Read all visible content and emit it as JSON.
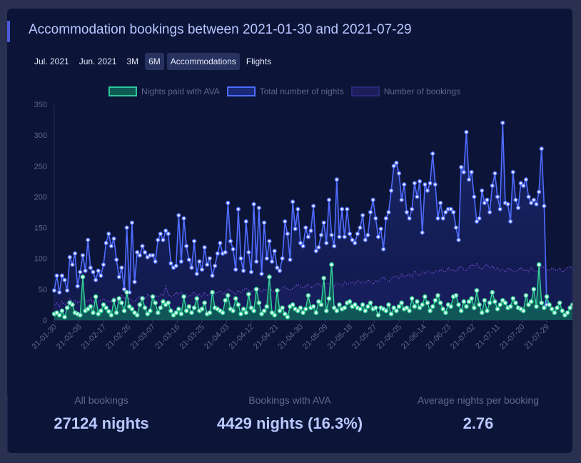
{
  "title": "Accommodation bookings between 2021-01-30 and 2021-07-29",
  "toolbar": [
    {
      "label": "Jul. 2021",
      "active": false
    },
    {
      "label": "Jun. 2021",
      "active": false
    },
    {
      "label": "3M",
      "active": false
    },
    {
      "label": "6M",
      "active": true
    },
    {
      "label": "Accommodations",
      "active": true
    },
    {
      "label": "Flights",
      "active": false
    }
  ],
  "stats": [
    {
      "label": "All bookings",
      "value": "27124 nights"
    },
    {
      "label": "Bookings with AVA",
      "value": "4429 nights (16.3%)"
    },
    {
      "label": "Average nights per booking",
      "value": "2.76"
    }
  ],
  "colors": {
    "ava": "#2fe0a0",
    "total": "#4f6cff",
    "bookings": "#7b4fd8"
  },
  "chart_data": {
    "type": "line",
    "title": "",
    "xlabel": "",
    "ylabel": "",
    "ylim": [
      0,
      350
    ],
    "yticks": [
      0,
      50,
      100,
      150,
      200,
      250,
      300,
      350
    ],
    "xtick_labels": [
      "21-01-30",
      "21-02-08",
      "21-02-17",
      "21-02-26",
      "21-03-07",
      "21-03-16",
      "21-03-25",
      "21-04-03",
      "21-04-12",
      "21-04-21",
      "21-04-30",
      "21-05-09",
      "21-05-18",
      "21-05-27",
      "21-06-05",
      "21-06-14",
      "21-06-23",
      "21-07-02",
      "21-07-11",
      "21-07-20",
      "21-07-29"
    ],
    "legend_position": "top-center",
    "series": [
      {
        "name": "Nights paid with AVA",
        "color": "#2fe0a0",
        "values": [
          10,
          12,
          8,
          15,
          5,
          20,
          28,
          25,
          12,
          10,
          8,
          70,
          15,
          18,
          22,
          12,
          38,
          10,
          15,
          25,
          20,
          14,
          8,
          32,
          12,
          35,
          28,
          15,
          45,
          22,
          18,
          12,
          8,
          25,
          35,
          20,
          10,
          15,
          38,
          28,
          12,
          20,
          30,
          25,
          28,
          15,
          8,
          12,
          18,
          10,
          38,
          15,
          22,
          12,
          20,
          35,
          15,
          18,
          28,
          10,
          12,
          45,
          20,
          18,
          15,
          12,
          32,
          40,
          18,
          15,
          35,
          25,
          10,
          18,
          12,
          42,
          20,
          15,
          50,
          28,
          10,
          15,
          22,
          70,
          12,
          8,
          48,
          15,
          20,
          10,
          5,
          22,
          25,
          18,
          15,
          20,
          12,
          18,
          40,
          20,
          22,
          12,
          30,
          25,
          68,
          15,
          35,
          90,
          20,
          15,
          25,
          18,
          20,
          28,
          30,
          22,
          25,
          20,
          18,
          25,
          15,
          22,
          28,
          18,
          20,
          8,
          20,
          18,
          15,
          25,
          10,
          20,
          15,
          22,
          28,
          18,
          20,
          15,
          35,
          22,
          30,
          20,
          25,
          38,
          28,
          15,
          22,
          32,
          40,
          28,
          18,
          12,
          25,
          22,
          38,
          40,
          25,
          15,
          30,
          22,
          30,
          35,
          20,
          48,
          25,
          12,
          32,
          15,
          28,
          45,
          30,
          18,
          25,
          32,
          28,
          20,
          22,
          35,
          28,
          20,
          18,
          15,
          40,
          25,
          30,
          50,
          22,
          90,
          28,
          20,
          38,
          25,
          18,
          12,
          20,
          28,
          15,
          8,
          12,
          20,
          25,
          10,
          30,
          15,
          18,
          25,
          20,
          62,
          35,
          22,
          8
        ],
        "show_markers": true,
        "fill": true
      },
      {
        "name": "Total number of nights",
        "color": "#4f6cff",
        "values": [
          48,
          72,
          45,
          72,
          65,
          48,
          102,
          90,
          108,
          55,
          78,
          105,
          80,
          130,
          85,
          78,
          65,
          80,
          72,
          90,
          125,
          140,
          120,
          132,
          98,
          70,
          85,
          50,
          150,
          45,
          158,
          62,
          110,
          105,
          120,
          110,
          102,
          105,
          105,
          95,
          130,
          140,
          130,
          145,
          140,
          92,
          85,
          88,
          170,
          95,
          165,
          120,
          98,
          85,
          128,
          75,
          95,
          82,
          118,
          90,
          100,
          72,
          88,
          108,
          125,
          108,
          110,
          190,
          128,
          115,
          82,
          180,
          100,
          80,
          160,
          110,
          78,
          188,
          95,
          182,
          75,
          158,
          100,
          128,
          95,
          112,
          85,
          80,
          100,
          160,
          140,
          98,
          192,
          148,
          180,
          125,
          120,
          150,
          135,
          145,
          185,
          112,
          118,
          138,
          158,
          125,
          195,
          138,
          120,
          228,
          135,
          180,
          135,
          180,
          140,
          130,
          125,
          140,
          150,
          170,
          130,
          138,
          175,
          195,
          165,
          135,
          148,
          115,
          165,
          175,
          210,
          250,
          255,
          238,
          195,
          220,
          175,
          165,
          180,
          222,
          200,
          225,
          142,
          220,
          210,
          222,
          270,
          220,
          165,
          190,
          165,
          175,
          180,
          180,
          175,
          150,
          130,
          248,
          240,
          305,
          228,
          240,
          200,
          160,
          165,
          210,
          190,
          195,
          175,
          218,
          238,
          200,
          180,
          320,
          190,
          188,
          160,
          240,
          195,
          182,
          222,
          218,
          228,
          200,
          190,
          195,
          188,
          208,
          278,
          185,
          25
        ],
        "show_markers": true,
        "fill": true
      },
      {
        "name": "Number of bookings",
        "color": "#7b4fd8",
        "values": [
          25,
          28,
          22,
          30,
          25,
          28,
          35,
          30,
          32,
          28,
          30,
          38,
          32,
          30,
          35,
          28,
          38,
          30,
          32,
          35,
          30,
          32,
          28,
          38,
          30,
          32,
          40,
          35,
          38,
          35,
          32,
          30,
          35,
          38,
          40,
          35,
          42,
          38,
          35,
          40,
          38,
          42,
          40,
          55,
          42,
          38,
          40,
          45,
          42,
          45,
          40,
          42,
          38,
          42,
          45,
          40,
          42,
          38,
          45,
          40,
          42,
          38,
          42,
          45,
          48,
          42,
          45,
          50,
          48,
          45,
          42,
          48,
          45,
          50,
          52,
          48,
          45,
          50,
          48,
          52,
          45,
          50,
          48,
          52,
          48,
          45,
          50,
          48,
          52,
          55,
          50,
          48,
          52,
          55,
          58,
          55,
          52,
          55,
          58,
          52,
          55,
          58,
          60,
          55,
          58,
          60,
          58,
          62,
          55,
          60,
          58,
          55,
          62,
          58,
          60,
          62,
          58,
          65,
          60,
          62,
          60,
          65,
          62,
          58,
          65,
          62,
          68,
          70,
          65,
          62,
          68,
          70,
          72,
          68,
          75,
          70,
          72,
          75,
          70,
          80,
          75,
          72,
          78,
          75,
          80,
          78,
          75,
          80,
          78,
          82,
          80,
          78,
          85,
          80,
          82,
          78,
          85,
          88,
          82,
          80,
          85,
          90,
          88,
          92,
          85,
          82,
          88,
          90,
          85,
          88,
          82,
          85,
          80,
          82,
          78,
          85,
          82,
          80,
          78,
          82,
          85,
          80,
          82,
          78,
          85,
          80,
          78,
          82,
          88,
          85,
          82,
          80,
          85,
          82,
          80,
          85,
          78,
          82,
          85,
          88,
          82,
          85,
          80,
          78,
          82,
          85,
          88,
          60
        ],
        "show_markers": false,
        "fill": true
      }
    ]
  }
}
